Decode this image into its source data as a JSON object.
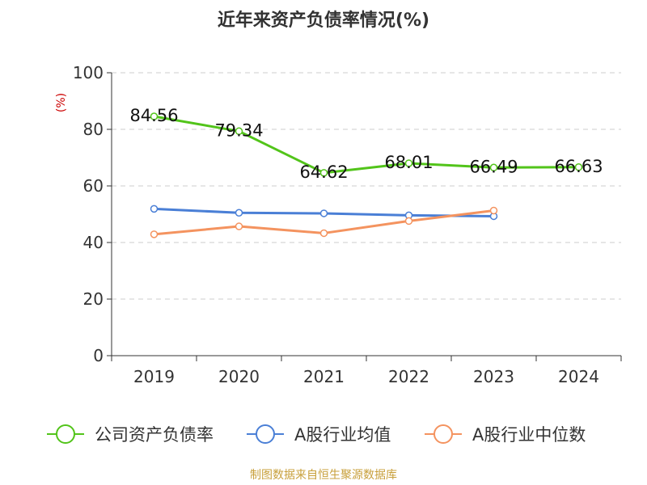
{
  "chart_data": {
    "type": "line",
    "title": "近年来资产负债率情况(%)",
    "ylabel": "(%)",
    "xlabel": "",
    "categories": [
      "2019",
      "2020",
      "2021",
      "2022",
      "2023",
      "2024"
    ],
    "ylim": [
      0,
      100
    ],
    "yticks": [
      0,
      20,
      40,
      60,
      80,
      100
    ],
    "grid": true,
    "legend_position": "bottom",
    "series": [
      {
        "name": "公司资产负债率",
        "color": "#52c41a",
        "values": [
          84.56,
          79.34,
          64.62,
          68.01,
          66.49,
          66.63
        ],
        "data_labels": [
          "84.56",
          "79.34",
          "64.62",
          "68.01",
          "66.49",
          "66.63"
        ]
      },
      {
        "name": "A股行业均值",
        "color": "#4a7fd6",
        "values": [
          51.9,
          50.5,
          50.3,
          49.6,
          49.3,
          null
        ]
      },
      {
        "name": "A股行业中位数",
        "color": "#f4935f",
        "values": [
          42.9,
          45.7,
          43.3,
          47.6,
          51.3,
          null
        ]
      }
    ]
  },
  "footer": {
    "source": "制图数据来自恒生聚源数据库"
  },
  "colors": {
    "title": "#333333",
    "axis": "#333333",
    "grid": "#cccccc",
    "ylabel": "#cc0000",
    "source": "#c8a03c"
  }
}
